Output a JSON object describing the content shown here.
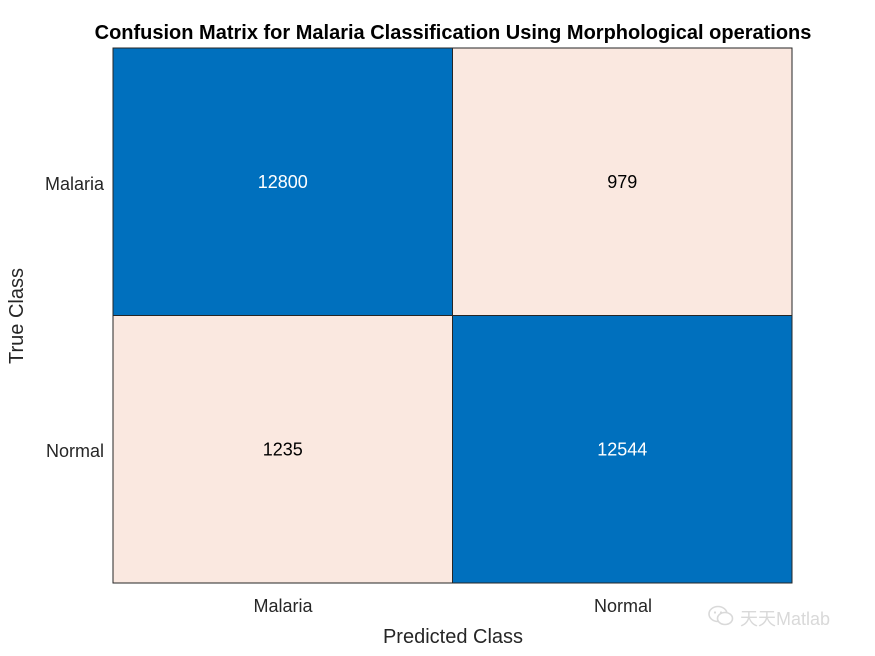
{
  "chart_data": {
    "type": "heatmap",
    "title": "Confusion Matrix for Malaria Classification Using Morphological operations",
    "xlabel": "Predicted Class",
    "ylabel": "True Class",
    "row_labels": [
      "Malaria",
      "Normal"
    ],
    "col_labels": [
      "Malaria",
      "Normal"
    ],
    "values": [
      [
        12800,
        979
      ],
      [
        1235,
        12544
      ]
    ],
    "colors": {
      "correct": "#0070BE",
      "incorrect": "#FAE8E0",
      "text_on_correct": "#FFFFFF",
      "text_on_incorrect": "#000000"
    }
  },
  "watermark": {
    "text": "天天Matlab",
    "icon": "wechat-icon",
    "color": "#D9D9D9"
  }
}
